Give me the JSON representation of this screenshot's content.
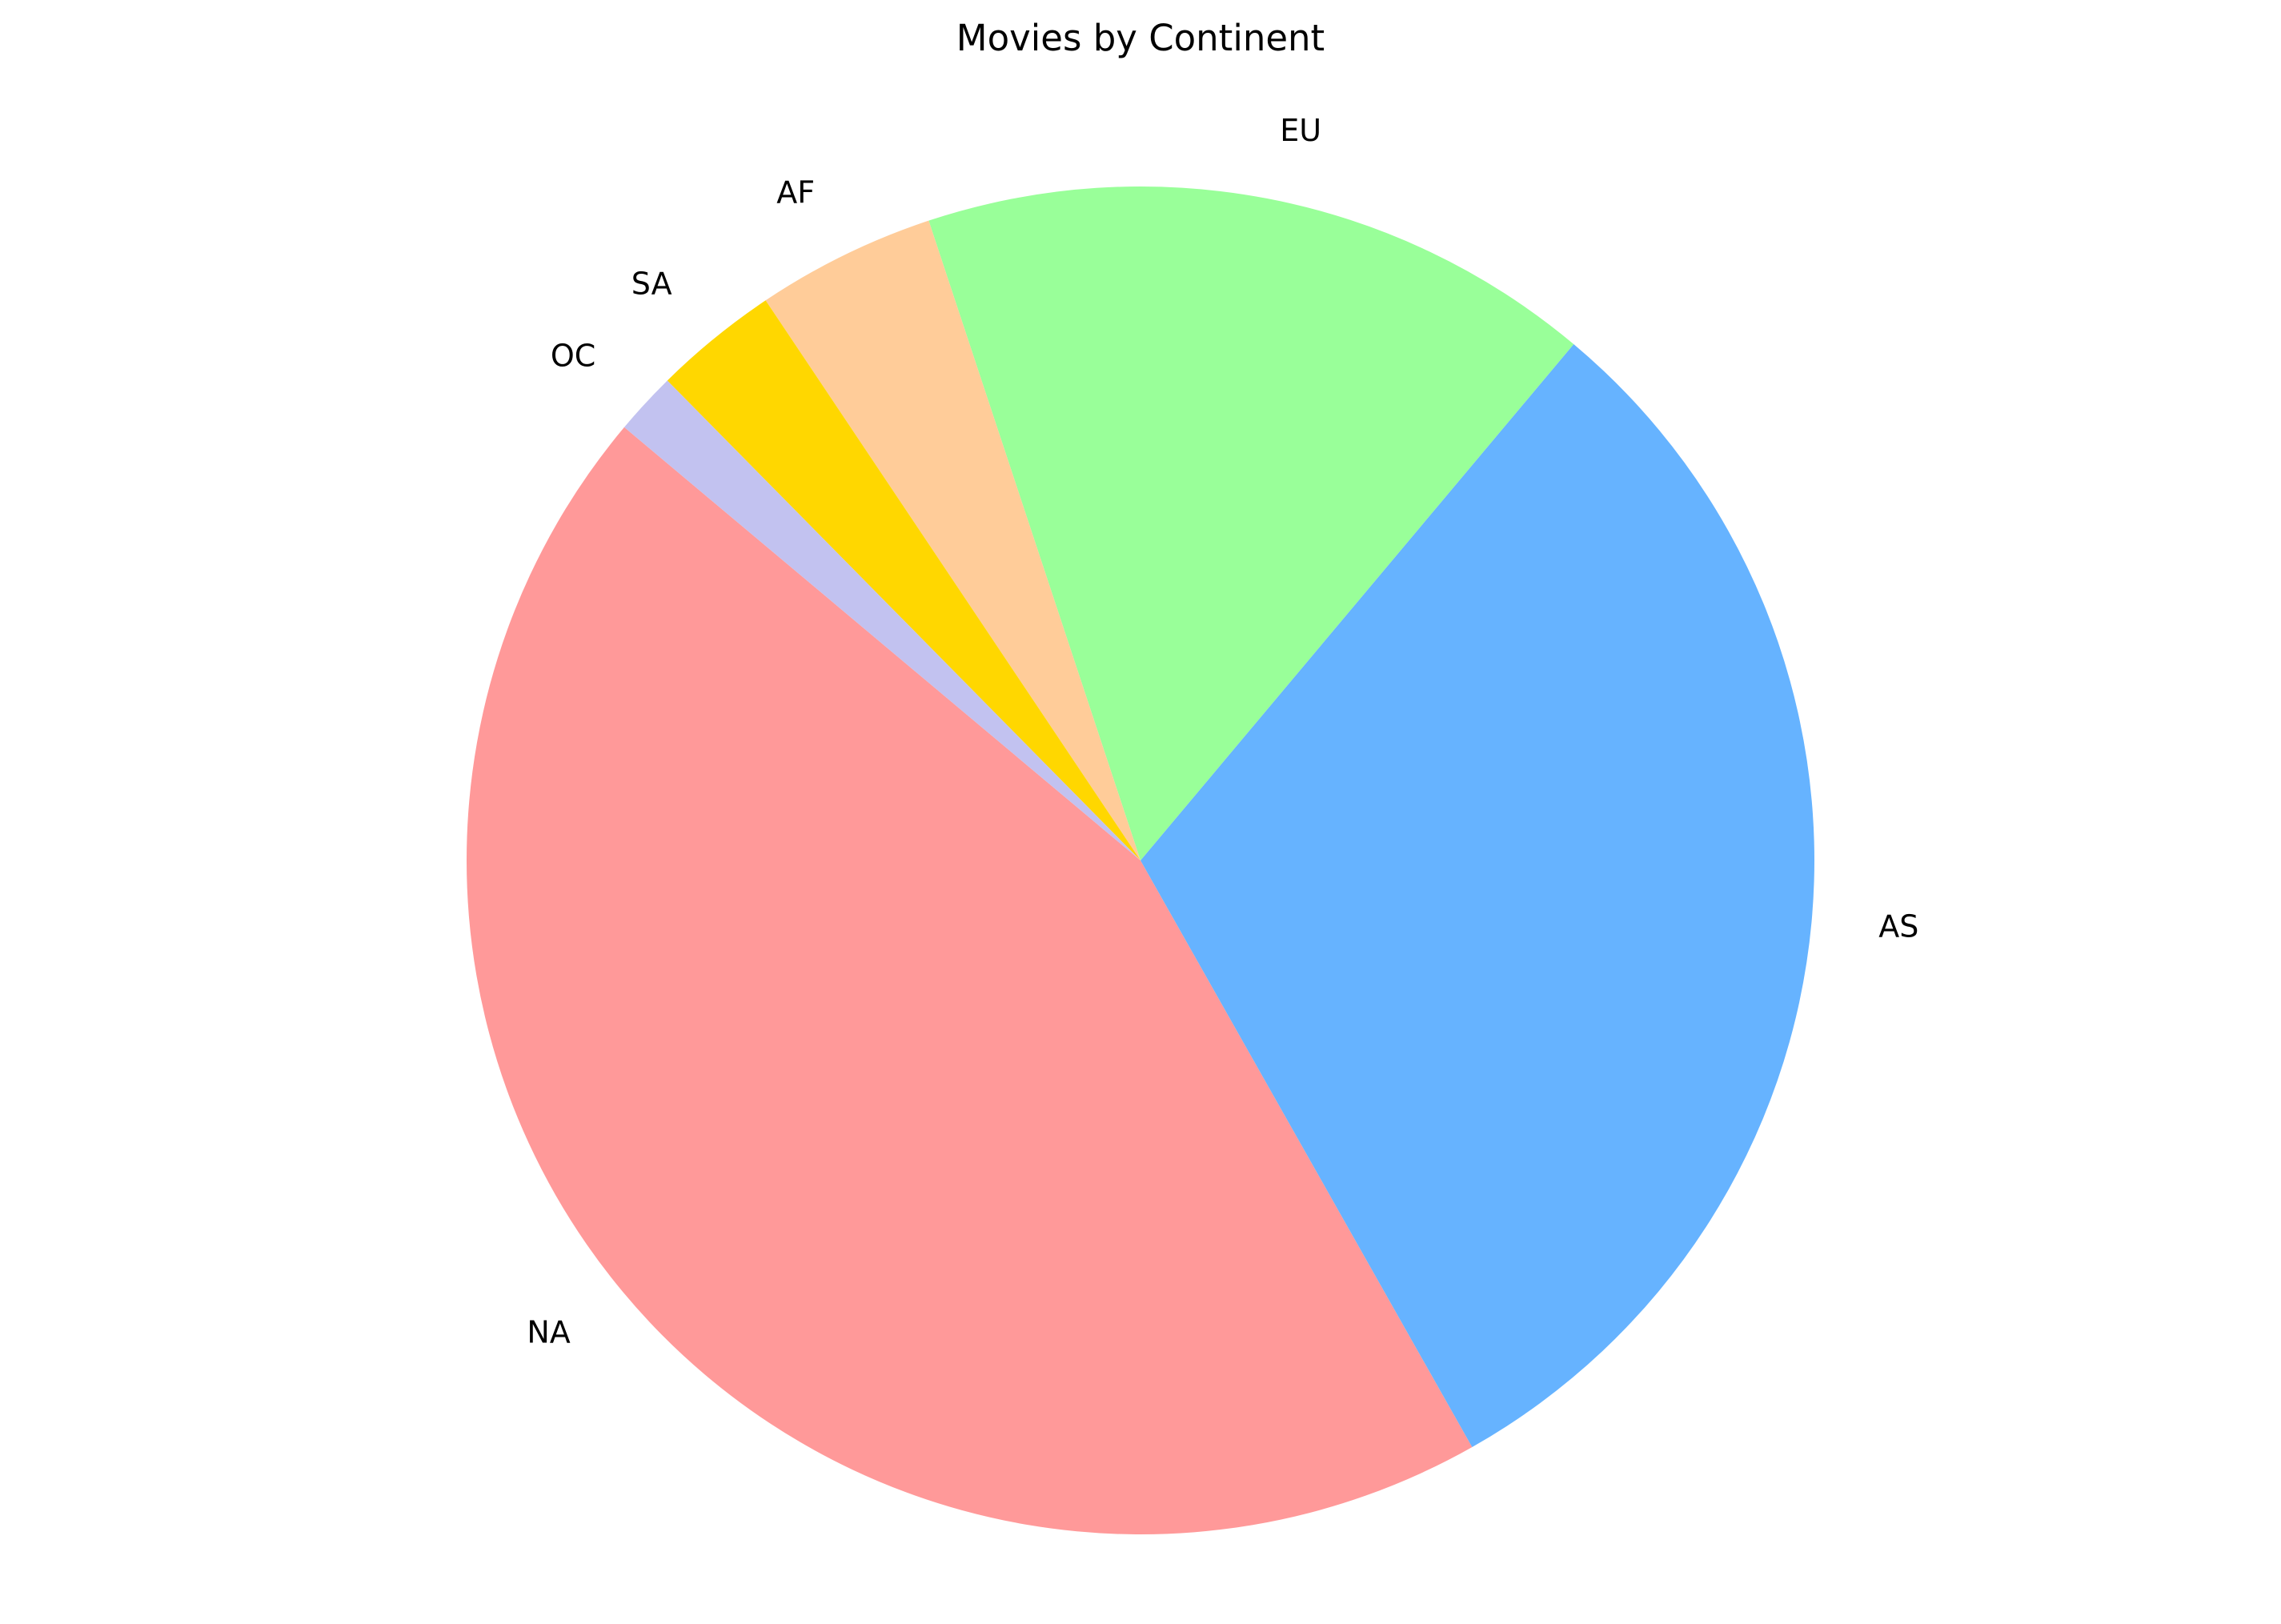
{
  "chart_data": {
    "type": "pie",
    "title": "Movies by Continent",
    "start_angle_deg": 140,
    "direction": "counterclockwise",
    "slices": [
      {
        "label": "NA",
        "value": 44.3,
        "color": "#ff9999"
      },
      {
        "label": "AS",
        "value": 30.7,
        "color": "#66b3ff"
      },
      {
        "label": "EU",
        "value": 16.2,
        "color": "#99ff99"
      },
      {
        "label": "AF",
        "value": 4.3,
        "color": "#ffcc99"
      },
      {
        "label": "SA",
        "value": 3.0,
        "color": "#ffd700"
      },
      {
        "label": "OC",
        "value": 1.5,
        "color": "#c2c2f0"
      }
    ]
  }
}
